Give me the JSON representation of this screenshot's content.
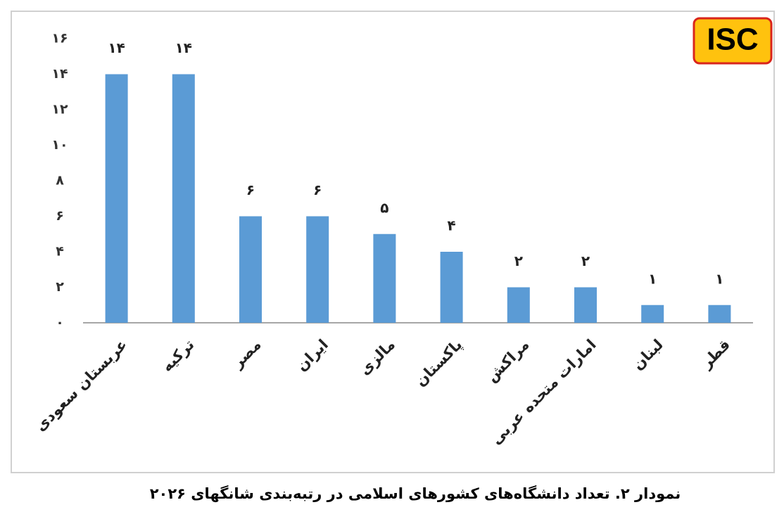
{
  "chart_data": {
    "type": "bar",
    "title": "نمودار ۲. تعداد دانشگاه‌های کشورهای اسلامی در رتبه‌بندی شانگهای ۲۰۲۶",
    "logo": "ISC",
    "categories": [
      "عربستان سعودی",
      "ترکیه",
      "مصر",
      "ایران",
      "مالزی",
      "پاکستان",
      "مراکش",
      "امارات متحده عربی",
      "لبنان",
      "قطر"
    ],
    "values": [
      14,
      14,
      6,
      6,
      5,
      4,
      2,
      2,
      1,
      1
    ],
    "value_labels": [
      "۱۴",
      "۱۴",
      "۶",
      "۶",
      "۵",
      "۴",
      "۲",
      "۲",
      "۱",
      "۱"
    ],
    "color": "#5b9bd5",
    "ylim": [
      0,
      16
    ],
    "yticks": [
      {
        "value": 0,
        "label": "۰"
      },
      {
        "value": 2,
        "label": "۲"
      },
      {
        "value": 4,
        "label": "۴"
      },
      {
        "value": 6,
        "label": "۶"
      },
      {
        "value": 8,
        "label": "۸"
      },
      {
        "value": 10,
        "label": "۱۰"
      },
      {
        "value": 12,
        "label": "۱۲"
      },
      {
        "value": 14,
        "label": "۱۴"
      },
      {
        "value": 16,
        "label": "۱۶"
      }
    ],
    "grid": false
  }
}
